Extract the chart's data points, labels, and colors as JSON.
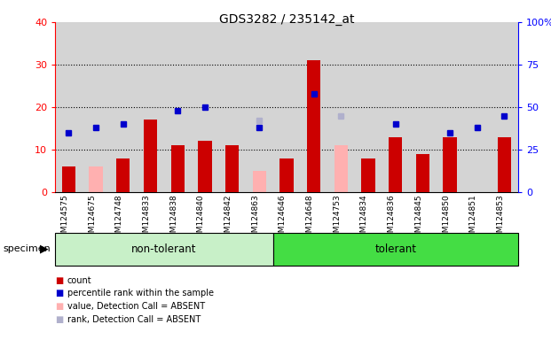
{
  "title": "GDS3282 / 235142_at",
  "samples": [
    "GSM124575",
    "GSM124675",
    "GSM124748",
    "GSM124833",
    "GSM124838",
    "GSM124840",
    "GSM124842",
    "GSM124863",
    "GSM124646",
    "GSM124648",
    "GSM124753",
    "GSM124834",
    "GSM124836",
    "GSM124845",
    "GSM124850",
    "GSM124851",
    "GSM124853"
  ],
  "count": [
    6,
    null,
    8,
    17,
    11,
    12,
    11,
    null,
    8,
    31,
    null,
    8,
    13,
    9,
    13,
    null,
    13
  ],
  "percentile_rank": [
    35,
    38,
    40,
    null,
    48,
    50,
    null,
    38,
    null,
    58,
    null,
    null,
    40,
    null,
    35,
    38,
    45
  ],
  "value_absent": [
    null,
    6,
    null,
    null,
    null,
    null,
    8,
    5,
    null,
    null,
    11,
    null,
    null,
    9,
    null,
    null,
    null
  ],
  "rank_absent": [
    null,
    null,
    null,
    null,
    null,
    null,
    null,
    42,
    null,
    null,
    45,
    null,
    null,
    null,
    null,
    38,
    null
  ],
  "non_tolerant_count": 8,
  "tolerant_count": 9,
  "group_labels": [
    "non-tolerant",
    "tolerant"
  ],
  "ylim_left": [
    0,
    40
  ],
  "ylim_right": [
    0,
    100
  ],
  "yticks_left": [
    0,
    10,
    20,
    30,
    40
  ],
  "yticks_right": [
    0,
    25,
    50,
    75,
    100
  ],
  "ytick_labels_right": [
    "0",
    "25",
    "50",
    "75",
    "100%"
  ],
  "color_count": "#cc0000",
  "color_rank": "#0000cc",
  "color_value_absent": "#ffb0b0",
  "color_rank_absent": "#b0b0cc",
  "color_bg": "#d4d4d4",
  "color_group_nontolerant": "#c8f0c8",
  "color_group_tolerant": "#44dd44",
  "bar_width": 0.5,
  "legend_items": [
    [
      "#cc0000",
      "count"
    ],
    [
      "#0000cc",
      "percentile rank within the sample"
    ],
    [
      "#ffb0b0",
      "value, Detection Call = ABSENT"
    ],
    [
      "#b0b0cc",
      "rank, Detection Call = ABSENT"
    ]
  ]
}
